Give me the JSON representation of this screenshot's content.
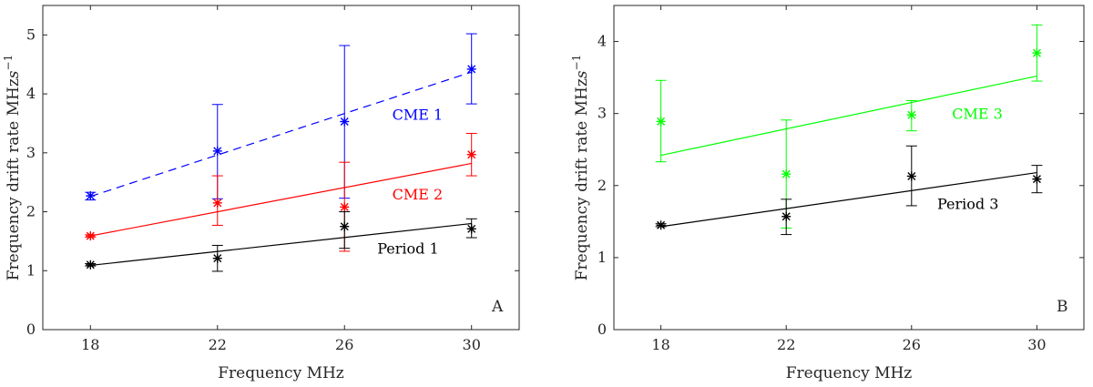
{
  "chart_data": [
    {
      "type": "scatter",
      "panel_label": "A",
      "xlabel": "Frequency MHz",
      "ylabel": "Frequency drift rate MHz",
      "ylabel_unit": "s",
      "ylabel_exp": "−1",
      "xlim": [
        16.5,
        31.5
      ],
      "ylim": [
        0,
        5.5
      ],
      "xticks": [
        18,
        22,
        26,
        30
      ],
      "yticks": [
        0,
        1,
        2,
        3,
        4,
        5
      ],
      "x": [
        18,
        22,
        26,
        30
      ],
      "grid": false,
      "series": [
        {
          "name": "CME 1",
          "color": "#0000ff",
          "line_style": "dashed",
          "values": [
            2.27,
            3.03,
            3.53,
            4.42
          ],
          "err_low": [
            2.2,
            2.22,
            2.23,
            3.83
          ],
          "err_high": [
            2.33,
            3.82,
            4.82,
            5.02
          ],
          "fit": [
            2.26,
            4.37
          ],
          "label_pos": [
            28.3,
            3.65
          ]
        },
        {
          "name": "CME 2",
          "color": "#ff0000",
          "line_style": "solid",
          "values": [
            1.59,
            2.15,
            2.08,
            2.97
          ],
          "err_low": [
            1.57,
            1.77,
            1.33,
            2.61
          ],
          "err_high": [
            1.61,
            2.61,
            2.84,
            3.33
          ],
          "fit": [
            1.59,
            2.82
          ],
          "label_pos": [
            28.3,
            2.3
          ]
        },
        {
          "name": "Period 1",
          "color": "#000000",
          "line_style": "solid",
          "values": [
            1.1,
            1.21,
            1.75,
            1.71
          ],
          "err_low": [
            1.08,
            0.99,
            1.38,
            1.56
          ],
          "err_high": [
            1.12,
            1.43,
            2.0,
            1.88
          ],
          "fit": [
            1.09,
            1.8
          ],
          "label_pos": [
            28.0,
            1.38
          ]
        }
      ]
    },
    {
      "type": "scatter",
      "panel_label": "B",
      "xlabel": "Frequency MHz",
      "ylabel": "Frequency drift rate MHz",
      "ylabel_unit": "s",
      "ylabel_exp": "−1",
      "xlim": [
        16.5,
        31.5
      ],
      "ylim": [
        0,
        4.5
      ],
      "xticks": [
        18,
        22,
        26,
        30
      ],
      "yticks": [
        0,
        1,
        2,
        3,
        4
      ],
      "x": [
        18,
        22,
        26,
        30
      ],
      "grid": false,
      "series": [
        {
          "name": "CME 3",
          "color": "#00ff00",
          "line_style": "solid",
          "values": [
            2.89,
            2.16,
            2.98,
            3.84
          ],
          "err_low": [
            2.33,
            1.41,
            2.76,
            3.45
          ],
          "err_high": [
            3.46,
            2.91,
            3.18,
            4.23
          ],
          "fit": [
            2.42,
            3.52
          ],
          "label_pos": [
            28.1,
            3.0
          ]
        },
        {
          "name": "Period 3",
          "color": "#000000",
          "line_style": "solid",
          "values": [
            1.45,
            1.57,
            2.13,
            2.09
          ],
          "err_low": [
            1.43,
            1.32,
            1.72,
            1.9
          ],
          "err_high": [
            1.47,
            1.81,
            2.55,
            2.28
          ],
          "fit": [
            1.43,
            2.18
          ],
          "label_pos": [
            27.8,
            1.75
          ]
        }
      ]
    }
  ]
}
